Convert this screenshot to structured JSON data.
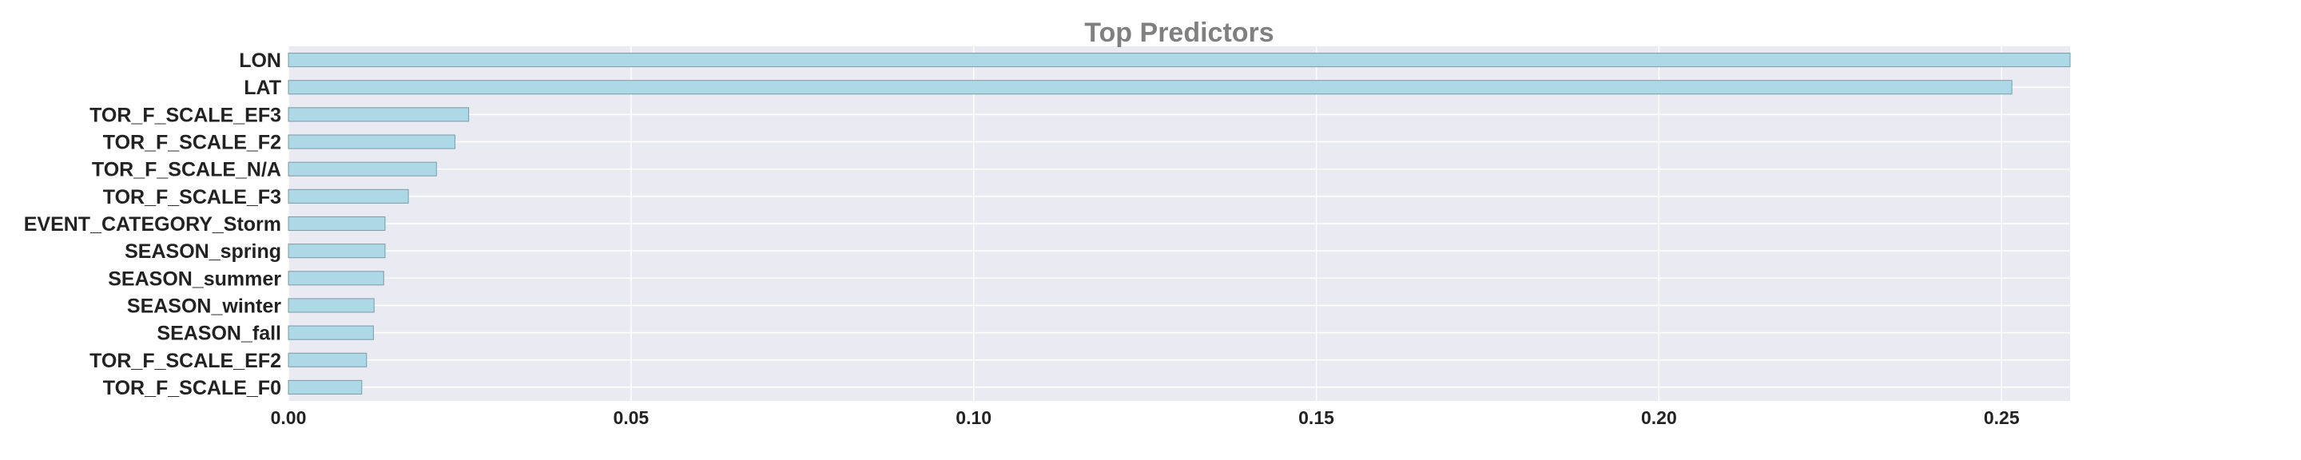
{
  "chart_data": {
    "type": "bar",
    "orientation": "horizontal",
    "title": "Top Predictors",
    "xlabel": "",
    "ylabel": "",
    "categories": [
      "LON",
      "LAT",
      "TOR_F_SCALE_EF3",
      "TOR_F_SCALE_F2",
      "TOR_F_SCALE_N/A",
      "TOR_F_SCALE_F3",
      "EVENT_CATEGORY_Storm",
      "SEASON_spring",
      "SEASON_summer",
      "SEASON_winter",
      "SEASON_fall",
      "TOR_F_SCALE_EF2",
      "TOR_F_SCALE_F0"
    ],
    "values": [
      0.26,
      0.2515,
      0.0263,
      0.0243,
      0.0216,
      0.0175,
      0.0141,
      0.0141,
      0.0139,
      0.0125,
      0.0124,
      0.0114,
      0.0107
    ],
    "xlim": [
      0,
      0.26
    ],
    "xticks": [
      "0.00",
      "0.05",
      "0.10",
      "0.15",
      "0.20",
      "0.25"
    ],
    "grid": true,
    "colors": {
      "bar": "#add8e6",
      "bar_edge": "#7f9aa5",
      "plot_bg": "#eaeaf2",
      "grid": "#ffffff"
    }
  }
}
